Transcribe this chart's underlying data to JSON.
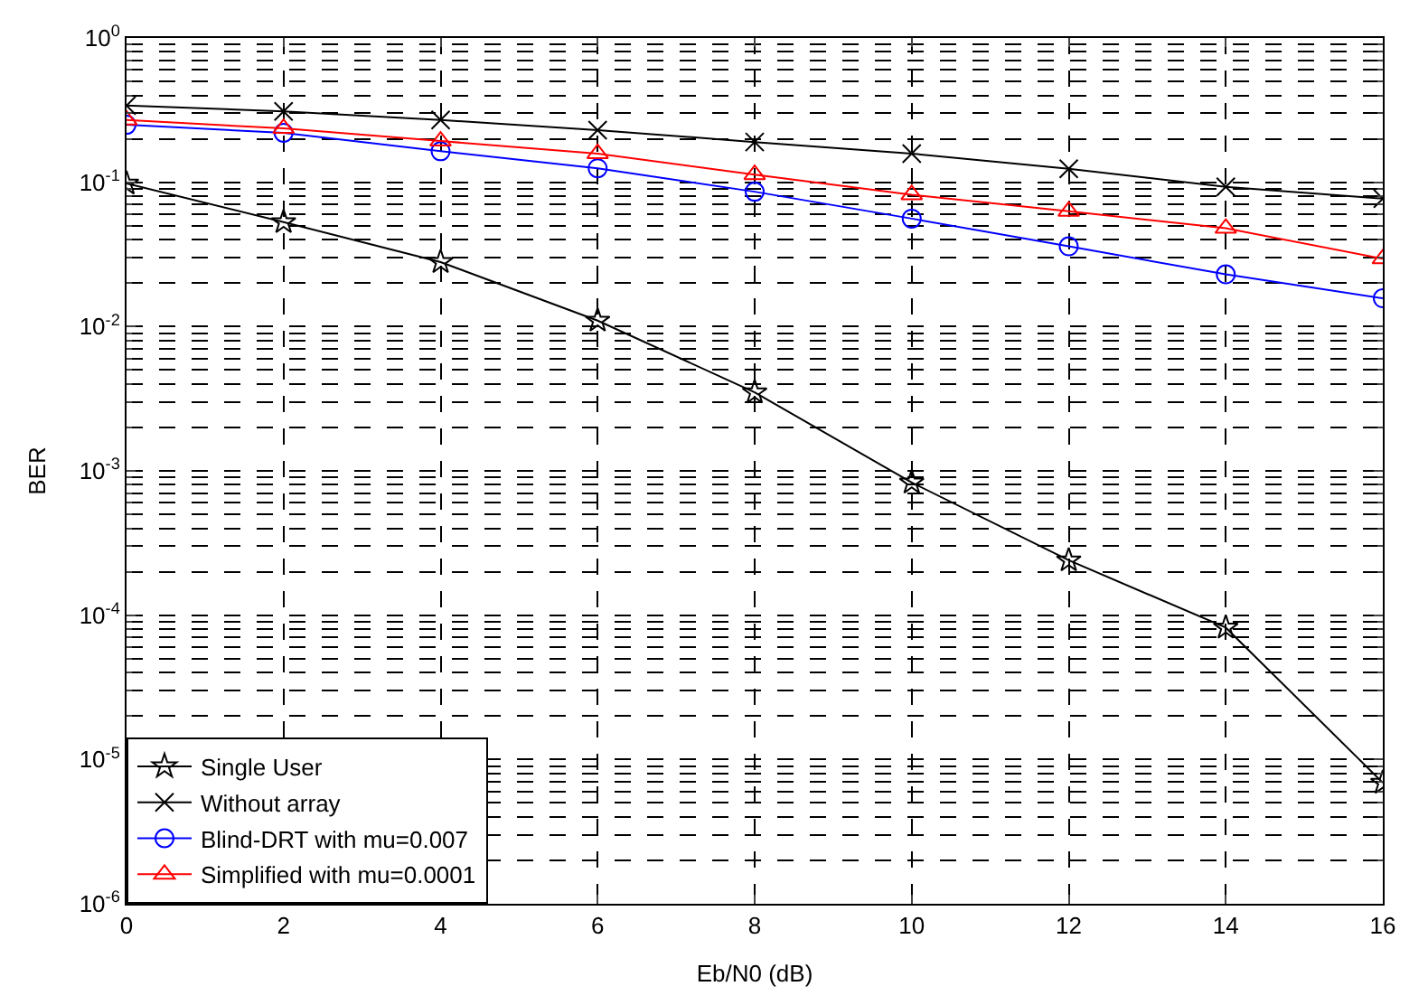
{
  "chart_data": {
    "type": "line",
    "xlabel": "Eb/N0 (dB)",
    "ylabel": "BER",
    "x": [
      0,
      2,
      4,
      6,
      8,
      10,
      12,
      14,
      16
    ],
    "series": [
      {
        "name": "Single User",
        "color": "#000000",
        "marker": "star",
        "values": [
          0.098,
          0.053,
          0.028,
          0.011,
          0.0035,
          0.00083,
          0.00024,
          8.2e-05,
          6.9e-06
        ]
      },
      {
        "name": "Without array",
        "color": "#000000",
        "marker": "cross",
        "values": [
          0.34,
          0.31,
          0.27,
          0.23,
          0.19,
          0.158,
          0.124,
          0.093,
          0.077
        ]
      },
      {
        "name": "Blind-DRT with mu=0.007",
        "color": "#0000ff",
        "marker": "circle",
        "values": [
          0.25,
          0.22,
          0.164,
          0.125,
          0.086,
          0.056,
          0.036,
          0.023,
          0.0157
        ]
      },
      {
        "name": "Simplified with mu=0.0001",
        "color": "#ff0000",
        "marker": "triangle",
        "values": [
          0.27,
          0.236,
          0.193,
          0.158,
          0.113,
          0.082,
          0.063,
          0.048,
          0.0295
        ]
      }
    ],
    "log": "y",
    "xlim": [
      0,
      16
    ],
    "xticks": [
      0,
      2,
      4,
      6,
      8,
      10,
      12,
      14,
      16
    ],
    "ylim": [
      1e-06,
      1
    ],
    "yticks": [
      {
        "value": 1e-06,
        "label": "10$^{-6}$"
      },
      {
        "value": 1e-05,
        "label": "10$^{-5}$"
      },
      {
        "value": 0.0001,
        "label": "10$^{-4}$"
      },
      {
        "value": 0.001,
        "label": "10$^{-3}$"
      },
      {
        "value": 0.01,
        "label": "10$^{-2}$"
      },
      {
        "value": 0.1,
        "label": "10$^{-1}$"
      },
      {
        "value": 1,
        "label": "10$^{0}$"
      }
    ],
    "grid": true,
    "legend": "bottom left",
    "line_style": "solid"
  }
}
